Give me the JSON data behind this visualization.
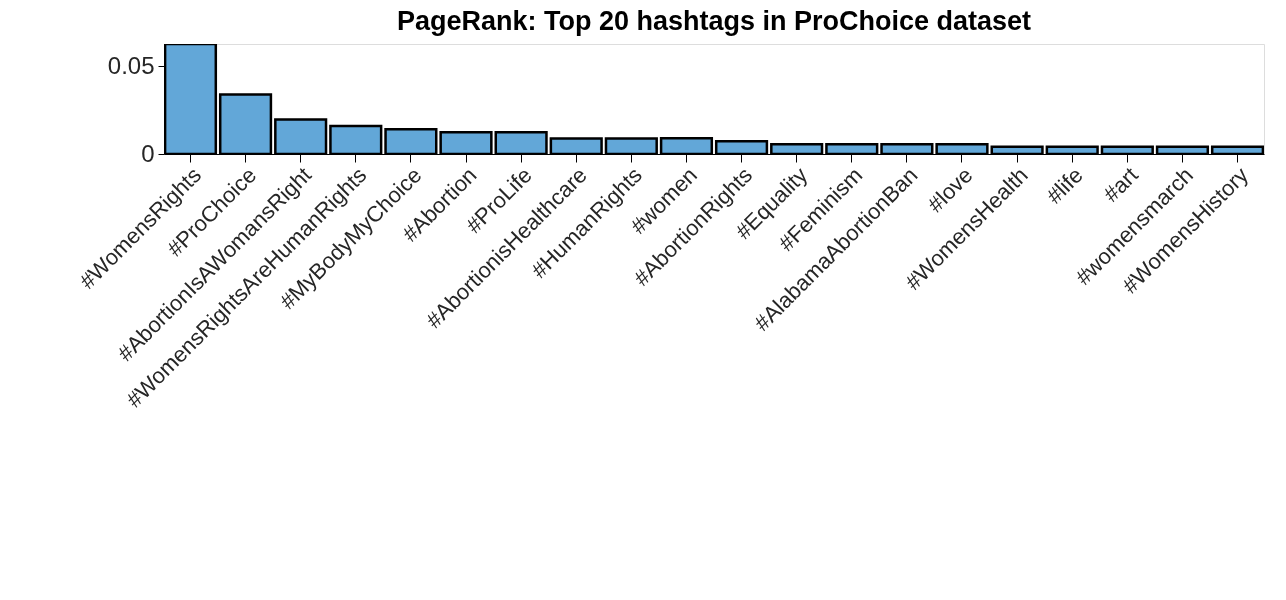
{
  "chart_data": {
    "type": "bar",
    "title": "PageRank: Top 20 hashtags in ProChoice dataset",
    "categories": [
      "#WomensRights",
      "#ProChoice",
      "#AbortionIsAWomansRight",
      "#WomensRightsAreHumanRights",
      "#MyBodyMyChoice",
      "#Abortion",
      "#ProLife",
      "#AbortionisHealthcare",
      "#HumanRights",
      "#women",
      "#AbortionRights",
      "#Equality",
      "#Feminism",
      "#AlabamaAbortionBan",
      "#love",
      "#WomensHealth",
      "#life",
      "#art",
      "#womensmarch",
      "#WomensHistory"
    ],
    "values": [
      0.0628,
      0.0339,
      0.0197,
      0.016,
      0.0142,
      0.0124,
      0.0124,
      0.0089,
      0.0089,
      0.009,
      0.0073,
      0.0055,
      0.0055,
      0.0055,
      0.0055,
      0.0041,
      0.0041,
      0.0041,
      0.0041,
      0.0041
    ],
    "color": "#62a7d8",
    "ylim": [
      0,
      0.0628
    ],
    "yticks": [
      0,
      0.05
    ],
    "grid": false
  }
}
